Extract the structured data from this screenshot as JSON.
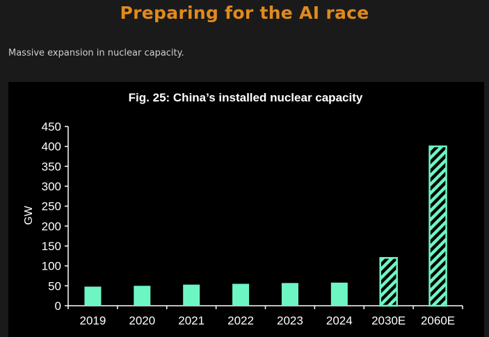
{
  "page": {
    "title": "Preparing for the AI race",
    "subtitle": "Massive expansion in nuclear capacity."
  },
  "colors": {
    "title": "#e08a1e",
    "bar": "#6ef5c4",
    "background": "#1a1a1a",
    "chart_background": "#000000"
  },
  "chart_data": {
    "type": "bar",
    "title": "Fig. 25: China’s installed nuclear capacity",
    "xlabel": "",
    "ylabel": "GW",
    "categories": [
      "2019",
      "2020",
      "2021",
      "2022",
      "2023",
      "2024",
      "2030E",
      "2060E"
    ],
    "values": [
      48,
      50,
      53,
      55,
      57,
      58,
      120,
      400
    ],
    "estimated": [
      false,
      false,
      false,
      false,
      false,
      false,
      true,
      true
    ],
    "ylim": [
      0,
      450
    ],
    "yticks": [
      0,
      50,
      100,
      150,
      200,
      250,
      300,
      350,
      400,
      450
    ],
    "grid": false
  }
}
